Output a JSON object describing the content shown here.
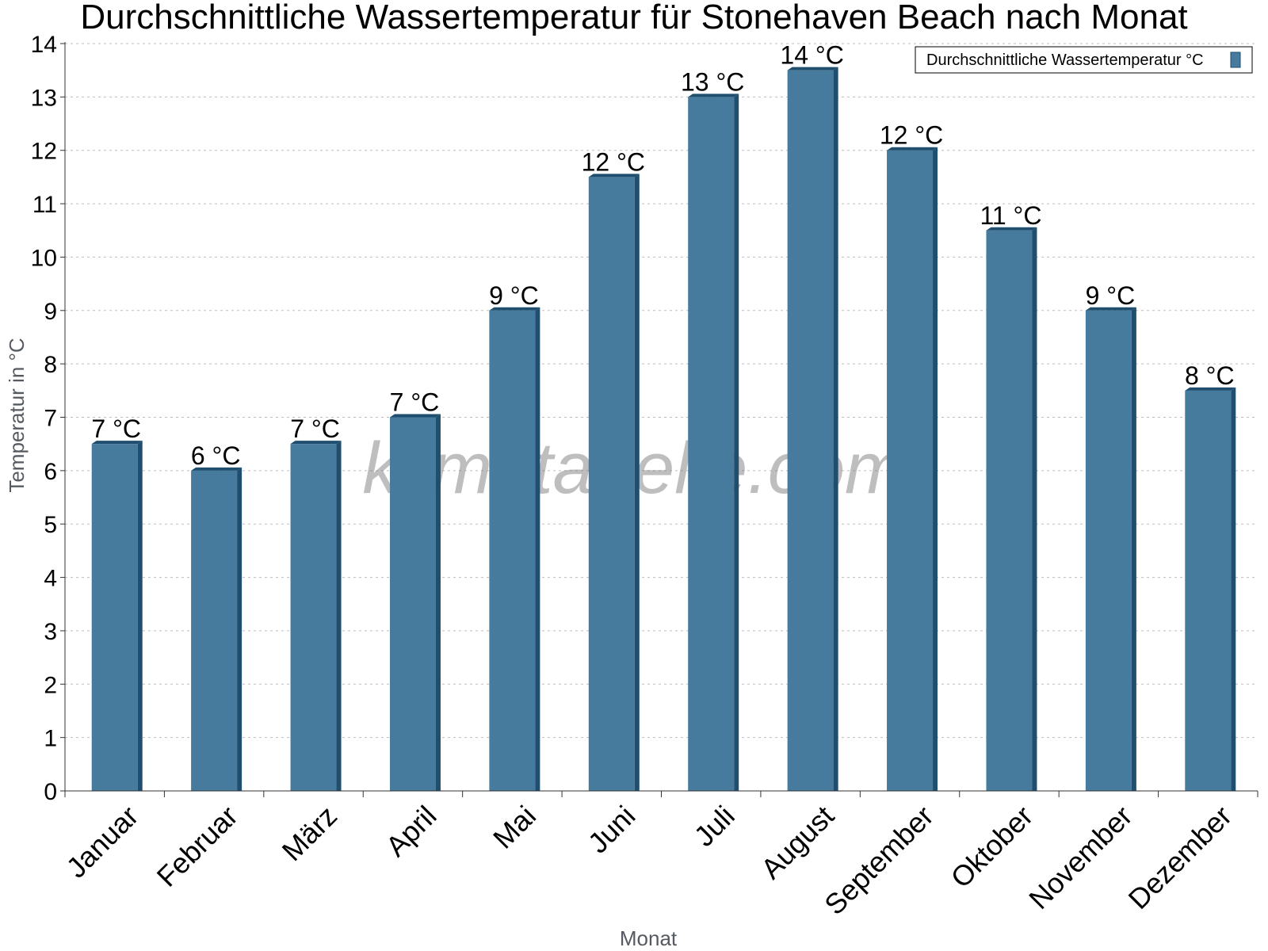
{
  "chart_data": {
    "type": "bar",
    "title": "Durchschnittliche Wassertemperatur für Stonehaven Beach nach Monat",
    "xlabel": "Monat",
    "ylabel": "Temperatur in °C",
    "ylim": [
      0,
      14
    ],
    "yticks": [
      0,
      1,
      2,
      3,
      4,
      5,
      6,
      7,
      8,
      9,
      10,
      11,
      12,
      13,
      14
    ],
    "grid": true,
    "legend_position": "top-right",
    "categories": [
      "Januar",
      "Februar",
      "März",
      "April",
      "Mai",
      "Juni",
      "Juli",
      "August",
      "September",
      "Oktober",
      "November",
      "Dezember"
    ],
    "series": [
      {
        "name": "Durchschnittliche Wassertemperatur °C",
        "values": [
          6.5,
          6.0,
          6.5,
          7.0,
          9.0,
          11.5,
          13.0,
          13.5,
          12.0,
          10.5,
          9.0,
          7.5
        ],
        "labels": [
          "7 °C",
          "6 °C",
          "7 °C",
          "7 °C",
          "9 °C",
          "12 °C",
          "13 °C",
          "14 °C",
          "12 °C",
          "11 °C",
          "9 °C",
          "8 °C"
        ],
        "color": "#467b9d",
        "edge_color": "#1f4e6e"
      }
    ]
  },
  "watermark": "klimatabelle.com"
}
